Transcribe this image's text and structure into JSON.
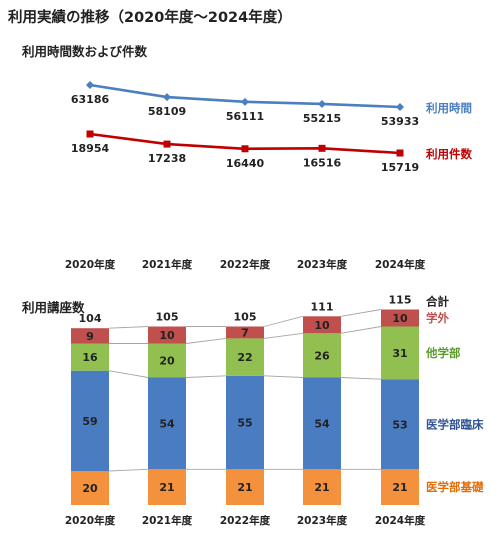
{
  "title": "利用実績の推移（2020年度～2024年度）",
  "chart_data": [
    {
      "type": "line",
      "title": "利用時間数および件数",
      "categories": [
        "2020年度",
        "2021年度",
        "2022年度",
        "2023年度",
        "2024年度"
      ],
      "series": [
        {
          "name": "利用時間",
          "values": [
            63186,
            58109,
            56111,
            55215,
            53933
          ],
          "color": "#4a7fc1"
        },
        {
          "name": "利用件数",
          "values": [
            18954,
            17238,
            16440,
            16516,
            15719
          ],
          "color": "#c00000"
        }
      ],
      "grid": false,
      "legend": "right"
    },
    {
      "type": "bar",
      "stacked": true,
      "title": "利用講座数",
      "categories": [
        "2020年度",
        "2021年度",
        "2022年度",
        "2023年度",
        "2024年度"
      ],
      "series": [
        {
          "name": "医学部基礎",
          "values": [
            20,
            21,
            21,
            21,
            21
          ],
          "color": "#f4913d",
          "label_color": "#e46c0a"
        },
        {
          "name": "医学部臨床",
          "values": [
            59,
            54,
            55,
            54,
            53
          ],
          "color": "#4a7cc2",
          "label_color": "#2f5597"
        },
        {
          "name": "他学部",
          "values": [
            16,
            20,
            22,
            26,
            31
          ],
          "color": "#92c050",
          "label_color": "#5a9a2a"
        },
        {
          "name": "学外",
          "values": [
            9,
            10,
            7,
            10,
            10
          ],
          "color": "#c0504d",
          "label_color": "#c0504d"
        }
      ],
      "totals": [
        104,
        105,
        105,
        111,
        115
      ],
      "totals_label": "合計",
      "legend": "right"
    }
  ]
}
